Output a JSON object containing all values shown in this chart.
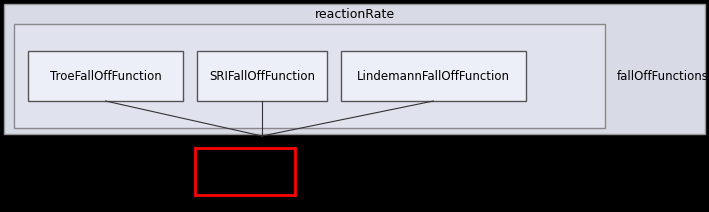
{
  "outer_box_label": "reactionRate",
  "outer_bg": "#d8dae6",
  "inner_bg": "#e0e2ee",
  "box_bg": "#eceef8",
  "box_border": "#555555",
  "inner_border": "#888888",
  "outer_border": "#999999",
  "boxes": [
    "TroeFallOffFunction",
    "SRIFallOffFunction",
    "LindemannFallOffFunction"
  ],
  "folder_label": "fallOffFunctions",
  "font_size": 8.5,
  "title_font_size": 9,
  "fig_bg": "#000000",
  "fig_width": 7.09,
  "fig_height": 2.12,
  "dpi": 100
}
